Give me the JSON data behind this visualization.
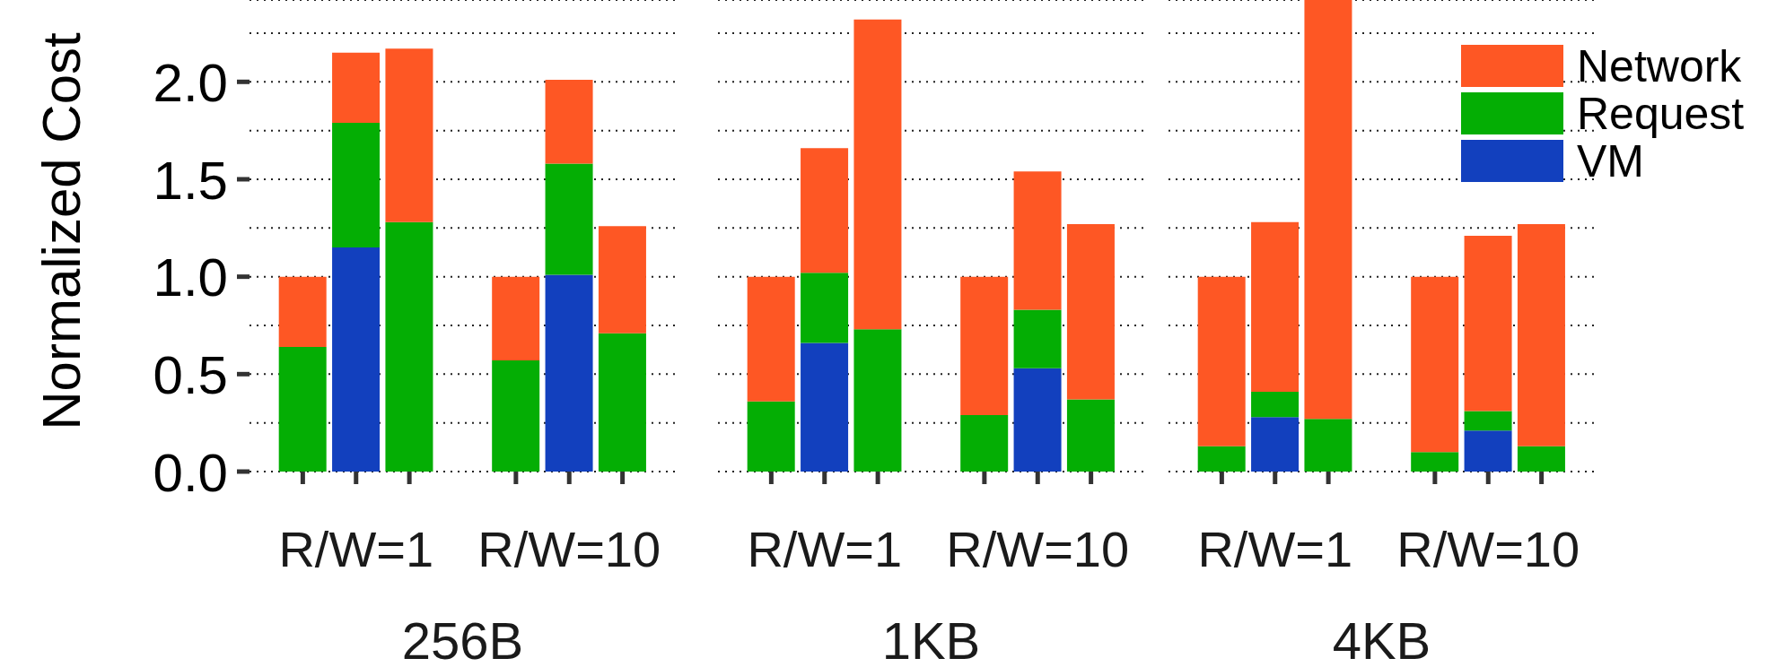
{
  "chart_data": [
    {
      "type": "bar",
      "stacked": true,
      "xlabel": "256B",
      "ylabel": "Normalized Cost",
      "categories": [
        null,
        "R/W=1",
        null,
        null,
        "R/W=10",
        null
      ],
      "ylim": [
        0,
        2.42
      ],
      "yticks": [
        {
          "value": 0,
          "label": "0.0"
        },
        {
          "value": 0.25,
          "label": null
        },
        {
          "value": 0.5,
          "label": "0.5"
        },
        {
          "value": 0.75,
          "label": null
        },
        {
          "value": 1,
          "label": "1.0"
        },
        {
          "value": 1.25,
          "label": null
        },
        {
          "value": 1.5,
          "label": "1.5"
        },
        {
          "value": 1.75,
          "label": null
        },
        {
          "value": 2,
          "label": "2.0"
        },
        {
          "value": 2.25,
          "label": null
        }
      ],
      "grid": "y",
      "legend": false,
      "series": [
        {
          "color": "#1240be",
          "values": [
            null,
            1.15,
            null,
            null,
            1.01,
            null
          ]
        },
        {
          "color": "#04ae04",
          "values": [
            0.64,
            0.64,
            1.28,
            0.57,
            0.57,
            0.71
          ]
        },
        {
          "color": "#fe5724",
          "values": [
            0.36,
            0.36,
            0.89,
            0.43,
            0.43,
            0.55
          ]
        }
      ]
    },
    {
      "type": "bar",
      "stacked": true,
      "xlabel": "1KB",
      "categories": [
        null,
        "R/W=1",
        null,
        null,
        "R/W=10",
        null
      ],
      "ylim": [
        0,
        2.42
      ],
      "yticks": [
        {
          "value": 0,
          "label": null
        },
        {
          "value": 0.25,
          "label": null
        },
        {
          "value": 0.5,
          "label": null
        },
        {
          "value": 0.75,
          "label": null
        },
        {
          "value": 1,
          "label": null
        },
        {
          "value": 1.25,
          "label": null
        },
        {
          "value": 1.5,
          "label": null
        },
        {
          "value": 1.75,
          "label": null
        },
        {
          "value": 2,
          "label": null
        },
        {
          "value": 2.25,
          "label": null
        }
      ],
      "grid": "y",
      "legend": false,
      "tick_labels": "x",
      "series": [
        {
          "color": "#1240be",
          "values": [
            null,
            0.66,
            null,
            null,
            0.53,
            null
          ]
        },
        {
          "color": "#04ae04",
          "values": [
            0.36,
            0.36,
            0.73,
            0.29,
            0.3,
            0.37
          ]
        },
        {
          "color": "#fe5724",
          "values": [
            0.64,
            0.64,
            1.59,
            0.71,
            0.71,
            0.9
          ]
        }
      ]
    },
    {
      "type": "bar",
      "stacked": true,
      "xlabel": "4KB",
      "categories": [
        null,
        "R/W=1",
        null,
        null,
        "R/W=10",
        null
      ],
      "ylim": [
        0,
        2.42
      ],
      "yticks": [
        {
          "value": 0,
          "label": null
        },
        {
          "value": 0.25,
          "label": null
        },
        {
          "value": 0.5,
          "label": null
        },
        {
          "value": 0.75,
          "label": null
        },
        {
          "value": 1,
          "label": null
        },
        {
          "value": 1.25,
          "label": null
        },
        {
          "value": 1.5,
          "label": null
        },
        {
          "value": 1.75,
          "label": null
        },
        {
          "value": 2,
          "label": null
        },
        {
          "value": 2.25,
          "label": null
        }
      ],
      "grid": "y",
      "legend": "top right",
      "tick_labels": "x",
      "series": [
        {
          "name": "VM",
          "color": "#1240be",
          "values": [
            null,
            0.28,
            null,
            null,
            0.21,
            null
          ]
        },
        {
          "name": "Request",
          "color": "#04ae04",
          "values": [
            0.13,
            0.13,
            0.27,
            0.1,
            0.1,
            0.13
          ]
        },
        {
          "name": "Network",
          "color": "#fe5724",
          "values": [
            0.87,
            0.87,
            2.15,
            0.9,
            0.9,
            1.14
          ]
        }
      ]
    }
  ]
}
